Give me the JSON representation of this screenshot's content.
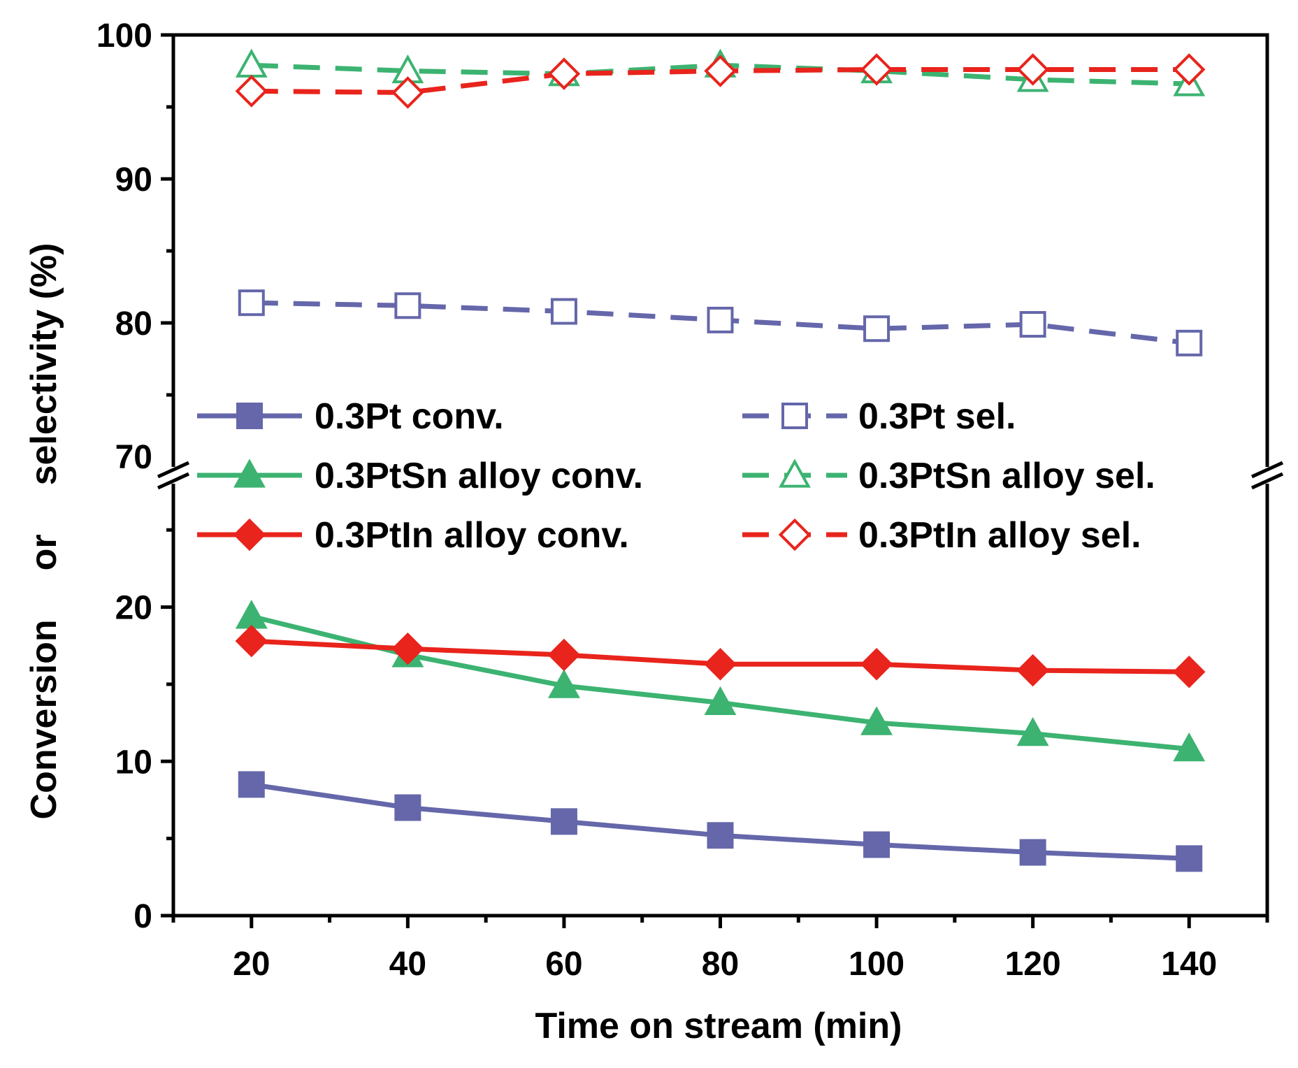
{
  "chart_data": {
    "type": "line",
    "xlabel": "Time on stream (min)",
    "ylabel": {
      "part1": "Conversion",
      "part2": "or",
      "part3": "selectivity (%)"
    },
    "broken_axis": {
      "lower_range": [
        0,
        28
      ],
      "upper_range": [
        70,
        100
      ]
    },
    "xlim": [
      10,
      150
    ],
    "x_ticks": [
      20,
      40,
      60,
      80,
      100,
      120,
      140
    ],
    "y_ticks_lower": [
      0,
      10,
      20
    ],
    "y_ticks_upper": [
      70,
      80,
      90,
      100
    ],
    "x": [
      20,
      40,
      60,
      80,
      100,
      120,
      140
    ],
    "series": [
      {
        "name": "0.3Pt conv.",
        "color": "#6567AA",
        "marker": "square",
        "filled": true,
        "dashed": false,
        "values": [
          8.5,
          7.0,
          6.1,
          5.2,
          4.6,
          4.1,
          3.7
        ]
      },
      {
        "name": "0.3Pt sel.",
        "color": "#6567AA",
        "marker": "square",
        "filled": false,
        "dashed": true,
        "values": [
          81.4,
          81.2,
          80.8,
          80.2,
          79.6,
          79.9,
          78.6
        ]
      },
      {
        "name": "0.3PtSn alloy conv.",
        "color": "#3CB371",
        "marker": "triangle",
        "filled": true,
        "dashed": false,
        "values": [
          19.4,
          16.9,
          14.9,
          13.8,
          12.5,
          11.8,
          10.8
        ]
      },
      {
        "name": "0.3PtSn alloy sel.",
        "color": "#3CB371",
        "marker": "triangle",
        "filled": false,
        "dashed": true,
        "values": [
          97.9,
          97.5,
          97.3,
          97.9,
          97.5,
          96.9,
          96.6
        ]
      },
      {
        "name": "0.3PtIn alloy conv.",
        "color": "#E8241C",
        "marker": "diamond",
        "filled": true,
        "dashed": false,
        "values": [
          17.8,
          17.3,
          16.9,
          16.3,
          16.3,
          15.9,
          15.8
        ]
      },
      {
        "name": "0.3PtIn alloy sel.",
        "color": "#E8241C",
        "marker": "diamond",
        "filled": false,
        "dashed": true,
        "values": [
          96.1,
          96.0,
          97.3,
          97.5,
          97.6,
          97.6,
          97.6
        ]
      }
    ],
    "legend_position": "middle"
  }
}
